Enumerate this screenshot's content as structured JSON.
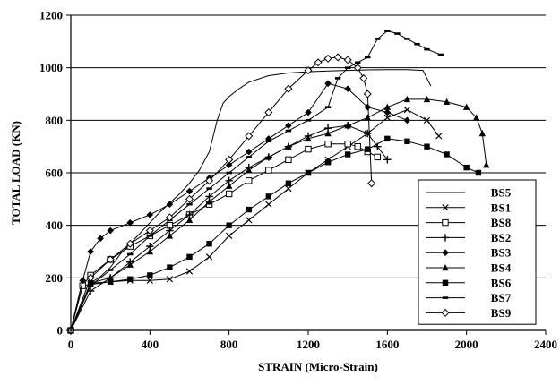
{
  "chart_data": {
    "type": "line",
    "title": "",
    "xlabel": "STRAIN (Micro-Strain)",
    "ylabel": "TOTAL LOAD (KN)",
    "xlim": [
      0,
      2400
    ],
    "ylim": [
      0,
      1200
    ],
    "xticks": [
      "0",
      "400",
      "800",
      "1200",
      "1600",
      "2000",
      "2400"
    ],
    "yticks": [
      "0",
      "200",
      "400",
      "600",
      "800",
      "1000",
      "1200"
    ],
    "grid": "horizontal",
    "legend_position": "lower-right",
    "series": [
      {
        "name": "BS5",
        "marker": "none",
        "color": "#000000",
        "x": [
          0,
          50,
          100,
          150,
          200,
          250,
          300,
          350,
          400,
          450,
          500,
          550,
          600,
          650,
          700,
          740,
          770,
          800,
          850,
          900,
          1000,
          1100,
          1200,
          1300,
          1400,
          1500,
          1600,
          1700,
          1780,
          1820
        ],
        "y": [
          0,
          160,
          180,
          205,
          240,
          290,
          330,
          370,
          410,
          450,
          485,
          520,
          560,
          610,
          680,
          800,
          865,
          890,
          920,
          945,
          970,
          980,
          985,
          988,
          990,
          992,
          993,
          993,
          990,
          930
        ]
      },
      {
        "name": "BS1",
        "marker": "x",
        "color": "#000000",
        "x": [
          0,
          100,
          200,
          300,
          400,
          500,
          600,
          700,
          800,
          900,
          1000,
          1100,
          1200,
          1300,
          1400,
          1500,
          1600,
          1700,
          1800,
          1860
        ],
        "y": [
          0,
          175,
          185,
          190,
          190,
          195,
          225,
          280,
          360,
          420,
          480,
          540,
          600,
          650,
          700,
          750,
          810,
          840,
          800,
          740
        ]
      },
      {
        "name": "BS8",
        "marker": "square-open",
        "color": "#000000",
        "x": [
          0,
          60,
          100,
          200,
          300,
          400,
          500,
          600,
          700,
          800,
          900,
          1000,
          1100,
          1200,
          1300,
          1400,
          1450,
          1500,
          1550
        ],
        "y": [
          0,
          170,
          210,
          270,
          320,
          360,
          400,
          440,
          480,
          520,
          570,
          610,
          650,
          690,
          710,
          710,
          700,
          680,
          660
        ]
      },
      {
        "name": "BS2",
        "marker": "plus",
        "color": "#000000",
        "x": [
          0,
          100,
          200,
          300,
          400,
          500,
          600,
          700,
          800,
          900,
          1000,
          1100,
          1200,
          1300,
          1400,
          1500,
          1550,
          1600
        ],
        "y": [
          0,
          150,
          200,
          260,
          320,
          380,
          440,
          510,
          570,
          620,
          660,
          700,
          740,
          770,
          780,
          750,
          700,
          650
        ]
      },
      {
        "name": "BS3",
        "marker": "diamond",
        "color": "#000000",
        "x": [
          0,
          60,
          100,
          150,
          200,
          300,
          400,
          500,
          600,
          700,
          800,
          900,
          1000,
          1100,
          1200,
          1300,
          1400,
          1500,
          1600,
          1700
        ],
        "y": [
          0,
          190,
          300,
          350,
          380,
          410,
          440,
          480,
          530,
          580,
          630,
          680,
          730,
          780,
          830,
          940,
          920,
          850,
          830,
          800
        ]
      },
      {
        "name": "BS4",
        "marker": "triangle",
        "color": "#000000",
        "x": [
          0,
          100,
          200,
          300,
          400,
          500,
          600,
          700,
          800,
          900,
          1000,
          1100,
          1200,
          1300,
          1400,
          1500,
          1600,
          1700,
          1800,
          1900,
          2000,
          2050,
          2080,
          2100
        ],
        "y": [
          0,
          180,
          200,
          250,
          300,
          360,
          420,
          490,
          550,
          610,
          660,
          700,
          730,
          750,
          780,
          810,
          850,
          880,
          880,
          870,
          850,
          810,
          750,
          630
        ]
      },
      {
        "name": "BS6",
        "marker": "square",
        "color": "#000000",
        "x": [
          0,
          100,
          200,
          300,
          400,
          500,
          600,
          700,
          800,
          900,
          1000,
          1100,
          1200,
          1300,
          1400,
          1500,
          1600,
          1700,
          1800,
          1900,
          2000,
          2060
        ],
        "y": [
          0,
          180,
          185,
          195,
          210,
          240,
          280,
          330,
          400,
          460,
          510,
          560,
          600,
          640,
          670,
          690,
          730,
          720,
          700,
          670,
          620,
          600
        ]
      },
      {
        "name": "BS7",
        "marker": "dash",
        "color": "#000000",
        "x": [
          0,
          100,
          200,
          300,
          400,
          500,
          600,
          700,
          800,
          900,
          1000,
          1100,
          1200,
          1300,
          1350,
          1400,
          1450,
          1500,
          1550,
          1600,
          1650,
          1700,
          1750,
          1800,
          1870
        ],
        "y": [
          0,
          170,
          230,
          290,
          360,
          420,
          480,
          540,
          600,
          660,
          720,
          760,
          800,
          850,
          960,
          1000,
          1020,
          1040,
          1110,
          1140,
          1130,
          1110,
          1090,
          1070,
          1050
        ]
      },
      {
        "name": "BS9",
        "marker": "diamond-open",
        "color": "#000000",
        "x": [
          0,
          100,
          200,
          300,
          400,
          500,
          600,
          700,
          800,
          900,
          1000,
          1100,
          1200,
          1250,
          1300,
          1350,
          1400,
          1450,
          1480,
          1500,
          1520
        ],
        "y": [
          0,
          200,
          270,
          330,
          380,
          430,
          500,
          570,
          650,
          740,
          830,
          920,
          990,
          1020,
          1035,
          1040,
          1030,
          1000,
          960,
          900,
          560
        ]
      }
    ]
  }
}
